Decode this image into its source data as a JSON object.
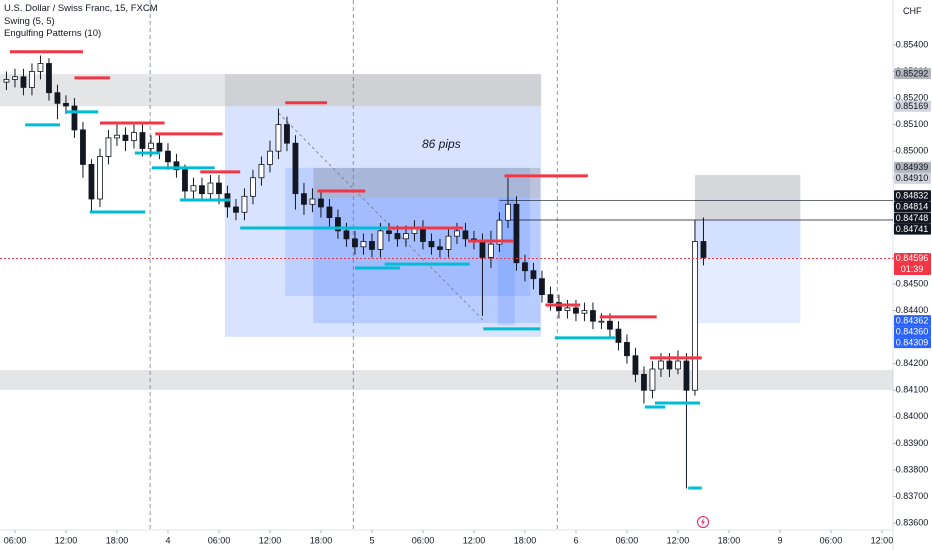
{
  "chart_data": {
    "type": "candlestick",
    "title": "U.S. Dollar / Swiss Franc, 15, FXCM",
    "indicators": [
      "Swing (5, 5)",
      "Engulfing Patterns (10)"
    ],
    "currency": "CHF",
    "annotation": "86 pips",
    "countdown": "01:39",
    "xlim": [
      -1.76,
      103.3
    ],
    "ylim": [
      0.83574,
      0.85569
    ],
    "xticks": [
      {
        "value": 0,
        "label": "06:00"
      },
      {
        "value": 6,
        "label": "12:00"
      },
      {
        "value": 12,
        "label": "18:00"
      },
      {
        "value": 18,
        "label": "4"
      },
      {
        "value": 24,
        "label": "06:00"
      },
      {
        "value": 30,
        "label": "12:00"
      },
      {
        "value": 36,
        "label": "18:00"
      },
      {
        "value": 42,
        "label": "5"
      },
      {
        "value": 48,
        "label": "06:00"
      },
      {
        "value": 54,
        "label": "12:00"
      },
      {
        "value": 60,
        "label": "18:00"
      },
      {
        "value": 66,
        "label": "6"
      },
      {
        "value": 72,
        "label": "06:00"
      },
      {
        "value": 78,
        "label": "12:00"
      },
      {
        "value": 84,
        "label": "18:00"
      },
      {
        "value": 90,
        "label": "9"
      },
      {
        "value": 96,
        "label": "06:00"
      },
      {
        "value": 102,
        "label": "12:00"
      }
    ],
    "yticks": [
      {
        "value": 0.854,
        "label": "0.85400"
      },
      {
        "value": 0.853,
        "label": "0.85300"
      },
      {
        "value": 0.852,
        "label": "0.85200"
      },
      {
        "value": 0.851,
        "label": "0.85100"
      },
      {
        "value": 0.85,
        "label": "0.85000"
      },
      {
        "value": 0.849,
        "label": "0.84900"
      },
      {
        "value": 0.848,
        "label": "0.84800"
      },
      {
        "value": 0.847,
        "label": "0.84700"
      },
      {
        "value": 0.846,
        "label": "0.84600"
      },
      {
        "value": 0.845,
        "label": "0.84500"
      },
      {
        "value": 0.844,
        "label": "0.84400"
      },
      {
        "value": 0.843,
        "label": "0.84300"
      },
      {
        "value": 0.842,
        "label": "0.84200"
      },
      {
        "value": 0.841,
        "label": "0.84100"
      },
      {
        "value": 0.84,
        "label": "0.84000"
      },
      {
        "value": 0.839,
        "label": "0.83900"
      },
      {
        "value": 0.838,
        "label": "0.83800"
      },
      {
        "value": 0.837,
        "label": "0.83700"
      },
      {
        "value": 0.836,
        "label": "0.83600"
      }
    ],
    "up_color": "#ffffff",
    "down_color": "#131722",
    "wick_color": "#131722",
    "x": [
      -1,
      0,
      1,
      2,
      3,
      4,
      5,
      6,
      7,
      8,
      9,
      10,
      11,
      12,
      13,
      14,
      15,
      16,
      17,
      18,
      19,
      20,
      21,
      22,
      23,
      24,
      25,
      26,
      27,
      28,
      29,
      30,
      31,
      32,
      33,
      34,
      35,
      36,
      37,
      38,
      39,
      40,
      41,
      42,
      43,
      44,
      45,
      46,
      47,
      48,
      49,
      50,
      51,
      52,
      53,
      54,
      55,
      56,
      57,
      58,
      59,
      60,
      61,
      62,
      63,
      64,
      65,
      66,
      67,
      68,
      69,
      70,
      71,
      72,
      73,
      74,
      75,
      76,
      77,
      78,
      79,
      80,
      81
    ],
    "open": [
      0.8526,
      0.8527,
      0.8528,
      0.8524,
      0.853,
      0.8533,
      0.8522,
      0.8518,
      0.8517,
      0.8508,
      0.8495,
      0.8482,
      0.8498,
      0.8505,
      0.8506,
      0.8504,
      0.8507,
      0.8501,
      0.8503,
      0.85,
      0.8496,
      0.8493,
      0.8485,
      0.8487,
      0.8484,
      0.8488,
      0.8484,
      0.8479,
      0.8477,
      0.8483,
      0.849,
      0.8495,
      0.85,
      0.851,
      0.8503,
      0.8484,
      0.848,
      0.8482,
      0.8479,
      0.8475,
      0.847,
      0.8467,
      0.8464,
      0.8466,
      0.8463,
      0.847,
      0.8469,
      0.8467,
      0.8469,
      0.8471,
      0.8466,
      0.8464,
      0.8463,
      0.8468,
      0.847,
      0.8467,
      0.8466,
      0.846,
      0.8465,
      0.8474,
      0.848,
      0.8458,
      0.8455,
      0.8452,
      0.8446,
      0.8443,
      0.844,
      0.8441,
      0.8439,
      0.844,
      0.8436,
      0.8436,
      0.8433,
      0.8428,
      0.8423,
      0.8416,
      0.841,
      0.8418,
      0.8421,
      0.8418,
      0.8421,
      0.841,
      0.8466
    ],
    "high": [
      0.853,
      0.8531,
      0.8531,
      0.8533,
      0.8536,
      0.8535,
      0.8525,
      0.8521,
      0.852,
      0.8511,
      0.8497,
      0.8501,
      0.8508,
      0.851,
      0.8509,
      0.851,
      0.851,
      0.8506,
      0.8506,
      0.8503,
      0.8499,
      0.8495,
      0.849,
      0.849,
      0.8491,
      0.8491,
      0.8487,
      0.8482,
      0.8486,
      0.8493,
      0.8498,
      0.8504,
      0.8516,
      0.8513,
      0.8506,
      0.8488,
      0.8486,
      0.8485,
      0.8482,
      0.8478,
      0.8473,
      0.847,
      0.8469,
      0.8469,
      0.8473,
      0.8473,
      0.8472,
      0.8472,
      0.8474,
      0.8474,
      0.8469,
      0.8467,
      0.8471,
      0.8473,
      0.8473,
      0.847,
      0.8469,
      0.847,
      0.8477,
      0.849,
      0.8483,
      0.8461,
      0.8458,
      0.8455,
      0.8449,
      0.8446,
      0.8444,
      0.8444,
      0.8443,
      0.8443,
      0.8439,
      0.8439,
      0.8436,
      0.8431,
      0.8426,
      0.8419,
      0.8421,
      0.8424,
      0.8424,
      0.8425,
      0.8424,
      0.8474,
      0.8475
    ],
    "low": [
      0.8523,
      0.8524,
      0.8521,
      0.8521,
      0.8527,
      0.8519,
      0.8512,
      0.8514,
      0.8505,
      0.849,
      0.8477,
      0.8479,
      0.8495,
      0.8502,
      0.85,
      0.8501,
      0.8498,
      0.8498,
      0.8497,
      0.8493,
      0.849,
      0.8481,
      0.8482,
      0.8481,
      0.8481,
      0.848,
      0.8475,
      0.8474,
      0.8474,
      0.848,
      0.8487,
      0.8492,
      0.8497,
      0.85,
      0.8478,
      0.8476,
      0.8477,
      0.8475,
      0.8471,
      0.8467,
      0.8464,
      0.8461,
      0.8461,
      0.846,
      0.846,
      0.8466,
      0.8464,
      0.8464,
      0.8466,
      0.8463,
      0.8461,
      0.846,
      0.846,
      0.8465,
      0.8464,
      0.8463,
      0.8438,
      0.8456,
      0.8462,
      0.8471,
      0.8455,
      0.8451,
      0.8448,
      0.8443,
      0.844,
      0.8437,
      0.8437,
      0.8436,
      0.8436,
      0.8433,
      0.8433,
      0.843,
      0.8425,
      0.842,
      0.8413,
      0.8405,
      0.8407,
      0.8415,
      0.8415,
      0.8416,
      0.8373,
      0.8408,
      0.8457
    ],
    "close": [
      0.8527,
      0.8528,
      0.8524,
      0.853,
      0.8533,
      0.8522,
      0.8518,
      0.8517,
      0.8508,
      0.8495,
      0.8482,
      0.8498,
      0.8505,
      0.8506,
      0.8504,
      0.8507,
      0.8501,
      0.8503,
      0.85,
      0.8496,
      0.8493,
      0.8485,
      0.8487,
      0.8484,
      0.8488,
      0.8484,
      0.8479,
      0.8477,
      0.8483,
      0.849,
      0.8495,
      0.85,
      0.851,
      0.8503,
      0.8484,
      0.848,
      0.8482,
      0.8479,
      0.8475,
      0.847,
      0.8467,
      0.8464,
      0.8466,
      0.8463,
      0.847,
      0.8469,
      0.8467,
      0.8469,
      0.8471,
      0.8466,
      0.8464,
      0.8463,
      0.8468,
      0.847,
      0.8467,
      0.8466,
      0.846,
      0.8465,
      0.8474,
      0.848,
      0.8458,
      0.8455,
      0.8452,
      0.8446,
      0.8443,
      0.844,
      0.8441,
      0.8439,
      0.844,
      0.8436,
      0.8436,
      0.8433,
      0.8428,
      0.8423,
      0.8416,
      0.841,
      0.8418,
      0.8421,
      0.8418,
      0.8421,
      0.841,
      0.8466,
      0.846
    ],
    "zones": [
      {
        "from": -1.76,
        "to": 24.7,
        "top": 0.8529,
        "bottom": 0.85169,
        "color": "rgba(120,123,134,0.2)"
      },
      {
        "from": 24.7,
        "to": 61.9,
        "top": 0.8529,
        "bottom": 0.85169,
        "color": "rgba(120,123,134,0.35)"
      },
      {
        "from": 24.7,
        "to": 61.9,
        "top": 0.85169,
        "bottom": 0.84301,
        "color": "rgba(41,98,255,0.18)"
      },
      {
        "from": 31.8,
        "to": 60.6,
        "top": 0.84937,
        "bottom": 0.84455,
        "color": "rgba(41,98,255,0.15)"
      },
      {
        "from": 35.1,
        "to": 61.8,
        "top": 0.84937,
        "bottom": 0.84824,
        "color": "rgba(120,123,134,0.3)"
      },
      {
        "from": 35.1,
        "to": 61.8,
        "top": 0.84824,
        "bottom": 0.84353,
        "color": "rgba(41,98,255,0.18)"
      },
      {
        "from": 56.8,
        "to": 58.8,
        "top": 0.84824,
        "bottom": 0.84345,
        "color": "rgba(41,98,255,0.15)"
      },
      {
        "from": -1.76,
        "to": 103.3,
        "top": 0.84176,
        "bottom": 0.84101,
        "color": "rgba(120,123,134,0.2)"
      },
      {
        "from": 80,
        "to": 92.4,
        "top": 0.8491,
        "bottom": 0.84745,
        "color": "rgba(120,123,134,0.3)"
      },
      {
        "from": 80,
        "to": 92.4,
        "top": 0.84745,
        "bottom": 0.84596,
        "color": "rgba(41,98,255,0.2)"
      },
      {
        "from": 80,
        "to": 92.4,
        "top": 0.84596,
        "bottom": 0.84353,
        "color": "rgba(41,98,255,0.12)"
      }
    ],
    "session_lines": [
      15.9,
      39.8,
      63.8
    ],
    "trend_line": {
      "from": [
        31,
        0.85144
      ],
      "to": [
        55.3,
        0.84357
      ]
    },
    "levels": [
      {
        "price": 0.84814,
        "from": 57
      },
      {
        "price": 0.84741,
        "from": 58
      }
    ],
    "swing_high_color": "#f23645",
    "swing_low_color": "#00bcd4",
    "swing_highs": [
      {
        "price": 0.85374,
        "from": -0.6,
        "to": 8
      },
      {
        "price": 0.85276,
        "from": 7,
        "to": 11.2
      },
      {
        "price": 0.85106,
        "from": 10,
        "to": 17.6
      },
      {
        "price": 0.85065,
        "from": 16.5,
        "to": 24.4
      },
      {
        "price": 0.84922,
        "from": 21.8,
        "to": 26.5
      },
      {
        "price": 0.85182,
        "from": 31.8,
        "to": 36.7
      },
      {
        "price": 0.8485,
        "from": 35.6,
        "to": 41.2
      },
      {
        "price": 0.84711,
        "from": 43,
        "to": 52.7
      },
      {
        "price": 0.84662,
        "from": 53.3,
        "to": 58.6
      },
      {
        "price": 0.84907,
        "from": 57.6,
        "to": 67.4
      },
      {
        "price": 0.84421,
        "from": 62.4,
        "to": 66.5
      },
      {
        "price": 0.84376,
        "from": 68.8,
        "to": 75.5
      },
      {
        "price": 0.84222,
        "from": 74.7,
        "to": 80.8
      }
    ],
    "swing_lows": [
      {
        "price": 0.85099,
        "from": 1.2,
        "to": 5.3
      },
      {
        "price": 0.85148,
        "from": 5.9,
        "to": 9.8
      },
      {
        "price": 0.84771,
        "from": 8.8,
        "to": 15.3
      },
      {
        "price": 0.84993,
        "from": 14.1,
        "to": 17.1
      },
      {
        "price": 0.84937,
        "from": 16.1,
        "to": 23.5
      },
      {
        "price": 0.84816,
        "from": 19.4,
        "to": 25.3
      },
      {
        "price": 0.84711,
        "from": 26.5,
        "to": 43.9
      },
      {
        "price": 0.8456,
        "from": 40,
        "to": 45.3
      },
      {
        "price": 0.84575,
        "from": 43.5,
        "to": 53.5
      },
      {
        "price": 0.84331,
        "from": 55.1,
        "to": 61.8
      },
      {
        "price": 0.84297,
        "from": 63.5,
        "to": 70.6
      },
      {
        "price": 0.84037,
        "from": 74.1,
        "to": 76.5
      },
      {
        "price": 0.84052,
        "from": 75.3,
        "to": 80.6
      },
      {
        "price": 0.83732,
        "from": 79.2,
        "to": 80.8
      }
    ],
    "price_tags": [
      {
        "value": 0.85292,
        "label": "0.85292",
        "color": "#b2b5be"
      },
      {
        "value": 0.85169,
        "label": "0.85169",
        "color": "#d1d4dc"
      },
      {
        "value": 0.84939,
        "label": "0.84939",
        "color": "#b2b5be"
      },
      {
        "value": 0.8491,
        "label": "0.84910",
        "color": "#d1d4dc"
      },
      {
        "value": 0.84832,
        "label": "0.84832",
        "color": "#131722"
      },
      {
        "value": 0.84814,
        "label": "0.84814",
        "color": "#131722"
      },
      {
        "value": 0.84748,
        "label": "0.84748",
        "color": "#131722"
      },
      {
        "value": 0.84741,
        "label": "0.84741",
        "color": "#131722"
      },
      {
        "value": 0.84596,
        "label": "0.84596",
        "color": "#f23645",
        "line": "dotted"
      },
      {
        "value": 0.84362,
        "label": "0.84362",
        "color": "#2962ff"
      },
      {
        "value": 0.8436,
        "label": "0.84360",
        "color": "#2962ff"
      },
      {
        "value": 0.84309,
        "label": "0.84309",
        "color": "#2962ff"
      }
    ]
  }
}
